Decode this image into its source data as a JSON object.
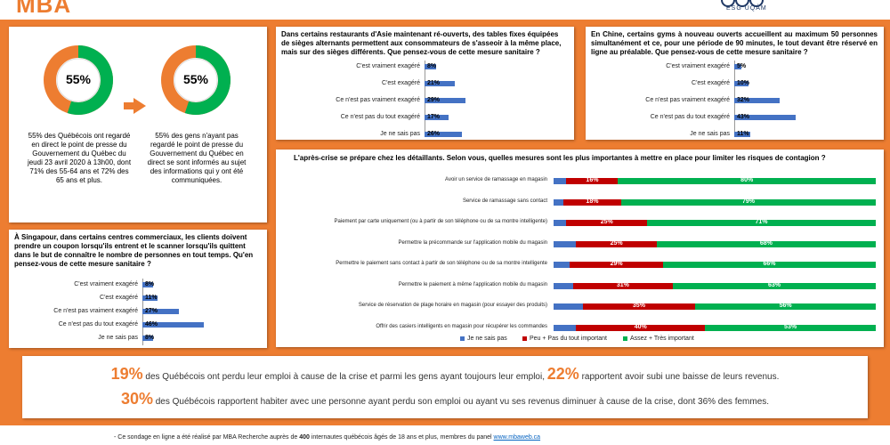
{
  "header": {
    "logo_left": "MBA",
    "logo_right_sub": "ESG UQÀM"
  },
  "colors": {
    "orange": "#ed7d31",
    "blue": "#4472c4",
    "red": "#c00000",
    "green": "#00b050"
  },
  "donuts": {
    "left": {
      "pct_label": "55%",
      "text": "55% des Québécois ont regardé en direct le point de presse du Gouvernement du Québec du jeudi 23 avril 2020 à 13h00, dont 71% des 55-64 ans et 72% des 65 ans et plus."
    },
    "right": {
      "pct_label": "55%",
      "text": "55% des gens n'ayant pas regardé le point de presse du Gouvernement du Québec en direct se sont informés au sujet des informations qui y ont été communiquées."
    }
  },
  "singapore": {
    "question": "À Singapour, dans certains centres commerciaux, les clients doivent prendre un coupon lorsqu'ils entrent et le scanner lorsqu'ils quittent dans le but de connaître le nombre de personnes en tout temps. Qu'en pensez-vous de cette mesure sanitaire ?"
  },
  "asia": {
    "question": "Dans certains restaurants d'Asie maintenant ré-ouverts, des tables fixes équipées de sièges alternants permettent aux consommateurs de s'asseoir à la même place, mais sur des sièges différents. Que pensez-vous de cette mesure sanitaire ?"
  },
  "china": {
    "question": "En Chine, certains gyms à nouveau ouverts accueillent au maximum 50 personnes simultanément et ce, pour une période de 90 minutes, le tout devant être réservé en ligne au préalable. Que pensez-vous de cette mesure sanitaire ?"
  },
  "retail": {
    "question": "L'après-crise se prépare chez les détaillants. Selon vous, quelles mesures sont les plus importantes à mettre en place pour limiter les risques de contagion ?"
  },
  "chart_data": [
    {
      "type": "bar",
      "categories": [
        "C'est vraiment exagéré",
        "C'est exagéré",
        "Ce n'est pas vraiment exagéré",
        "Ce n'est pas du tout exagéré",
        "Je ne sais pas"
      ],
      "values": [
        8,
        11,
        27,
        46,
        8
      ],
      "labels": [
        "8%",
        "11%",
        "27%",
        "46%",
        "8%"
      ]
    },
    {
      "type": "bar",
      "categories": [
        "C'est vraiment exagéré",
        "C'est exagéré",
        "Ce n'est pas vraiment exagéré",
        "Ce n'est pas du tout exagéré",
        "Je ne sais pas"
      ],
      "values": [
        8,
        21,
        29,
        17,
        26
      ],
      "labels": [
        "8%",
        "21%",
        "29%",
        "17%",
        "26%"
      ]
    },
    {
      "type": "bar",
      "categories": [
        "C'est vraiment exagéré",
        "C'est exagéré",
        "Ce n'est pas vraiment exagéré",
        "Ce n'est pas du tout exagéré",
        "Je ne sais pas"
      ],
      "values": [
        5,
        10,
        32,
        43,
        11
      ],
      "labels": [
        "5%",
        "10%",
        "32%",
        "43%",
        "11%"
      ]
    },
    {
      "type": "bar",
      "categories": [
        "Avoir un service de ramassage en magasin",
        "Service de ramassage sans contact",
        "Paiement par carte uniquement (ou à partir de son téléphone ou de sa montre intelligente)",
        "Permettre la précommande sur l'application mobile du magasin",
        "Permettre le paiement sans contact à partir de son téléphone ou de sa montre intelligente",
        "Permettre le paiement à même l'application mobile du magasin",
        "Service de réservation de plage horaire en magasin (pour essayer des produits)",
        "Offrir des casiers intelligents en magasin pour récupérer les commandes"
      ],
      "series": [
        {
          "name": "Je ne sais pas",
          "values": [
            4,
            3,
            4,
            7,
            5,
            6,
            9,
            7
          ]
        },
        {
          "name": "Peu + Pas du tout important",
          "values": [
            16,
            18,
            25,
            25,
            29,
            31,
            35,
            40
          ],
          "labels": [
            "16%",
            "18%",
            "25%",
            "25%",
            "29%",
            "31%",
            "35%",
            "40%"
          ]
        },
        {
          "name": "Assez + Très important",
          "values": [
            80,
            79,
            71,
            68,
            66,
            63,
            56,
            53
          ],
          "labels": [
            "80%",
            "79%",
            "71%",
            "68%",
            "66%",
            "63%",
            "56%",
            "53%"
          ]
        }
      ],
      "legend": "bottom"
    }
  ],
  "stats": {
    "line1_pct1": "19%",
    "line1_text1": "des Québécois ont perdu leur emploi à cause de la crise et parmi les gens ayant toujours leur emploi,",
    "line1_pct2": "22%",
    "line1_text2": "rapportent avoir subi une baisse de leurs revenus.",
    "line2_pct": "30%",
    "line2_text": "des Québécois rapportent habiter avec une personne ayant perdu son emploi ou ayant vu ses revenus diminuer à cause de la crise, dont 36% des femmes."
  },
  "footer": {
    "prefix": "Ce sondage en ligne a été réalisé par MBA Recherche auprès de",
    "count": "400",
    "suffix": "internautes québécois âgés de 18 ans et plus, membres du panel",
    "link": "www.mbaweb.ca"
  }
}
